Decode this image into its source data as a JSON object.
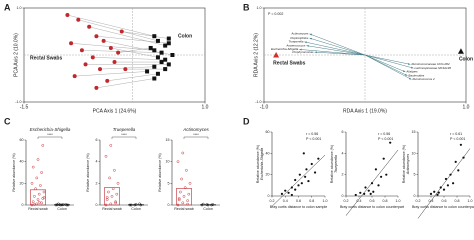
{
  "chart_data": [
    {
      "type": "scatter",
      "panel_label": "A",
      "xlabel": "PCA Axis 1 (24.6%)",
      "ylabel": "PCA Axis 2 (10.0%)",
      "xlim": [
        -1.5,
        1.0
      ],
      "ylim": [
        -1.0,
        1.0
      ],
      "xticks": [
        {
          "value": -1.5,
          "label": "-1.5"
        },
        {
          "value": 1.0,
          "label": "1.0"
        }
      ],
      "yticks": [
        {
          "value": -1.0,
          "label": "-1.0"
        },
        {
          "value": 1.0,
          "label": "1.0"
        }
      ],
      "frame": true,
      "zero_lines": true,
      "paired": true,
      "annotations": [
        {
          "text": "Rectal Swabs",
          "color": "#d42b2b"
        },
        {
          "text": "Colon",
          "color": "#111111"
        }
      ],
      "series": [
        {
          "name": "Rectal Swabs",
          "color": "#c0282d",
          "marker": "circle",
          "x": [
            -0.9,
            -0.75,
            -0.6,
            -0.5,
            -0.85,
            -0.7,
            -0.4,
            -0.3,
            -0.55,
            -0.2,
            -0.65,
            -0.45,
            -0.25,
            -0.8,
            -0.35,
            -0.1,
            -0.5,
            -0.15
          ],
          "y": [
            0.85,
            0.75,
            0.6,
            0.4,
            0.25,
            0.1,
            0.3,
            0.15,
            -0.05,
            0.05,
            -0.2,
            -0.3,
            -0.15,
            -0.45,
            -0.55,
            -0.3,
            -0.7,
            0.5
          ]
        },
        {
          "name": "Colon",
          "color": "#111111",
          "marker": "square",
          "x": [
            0.3,
            0.35,
            0.45,
            0.5,
            0.3,
            0.4,
            0.55,
            0.35,
            0.45,
            0.25,
            0.5,
            0.3,
            0.4,
            0.2,
            0.35,
            0.45,
            0.3,
            0.5
          ],
          "y": [
            0.4,
            0.3,
            0.2,
            0.25,
            0.1,
            0.05,
            0.0,
            -0.05,
            -0.1,
            0.15,
            -0.2,
            -0.25,
            -0.15,
            -0.35,
            -0.4,
            -0.3,
            -0.5,
            0.35
          ]
        }
      ]
    },
    {
      "type": "biplot",
      "panel_label": "B",
      "xlabel": "RDA Axis 1 (19.0%)",
      "ylabel": "RDA Axis 2 (12.2%)",
      "xlim": [
        -1.0,
        1.0
      ],
      "ylim": [
        -1.0,
        1.0
      ],
      "xticks": [
        {
          "value": -1.0,
          "label": "-1.0"
        },
        {
          "value": 1.0,
          "label": "1.0"
        }
      ],
      "yticks": [
        {
          "value": -1.0,
          "label": "-1.0"
        },
        {
          "value": 1.0,
          "label": "1.0"
        }
      ],
      "frame": true,
      "zero_lines": true,
      "annotations": [
        {
          "text": "P = 0.002",
          "color": "#111111"
        }
      ],
      "groups": [
        {
          "name": "Rectal Swabs",
          "color": "#d42b2b",
          "x": -0.88,
          "y": 0.0
        },
        {
          "name": "Colon",
          "color": "#111111",
          "x": 0.95,
          "y": 0.08
        }
      ],
      "vectors": [
        {
          "name": "Actinomyces",
          "x": -0.55,
          "y": 0.45
        },
        {
          "name": "Peptoniphilus",
          "x": -0.55,
          "y": 0.36
        },
        {
          "name": "Trueperella",
          "x": -0.6,
          "y": 0.28
        },
        {
          "name": "Anaerococcus",
          "x": -0.58,
          "y": 0.2
        },
        {
          "name": "Escherichia-Shigella",
          "x": -0.65,
          "y": 0.12
        },
        {
          "name": "Porphyromonas",
          "x": -0.5,
          "y": 0.06
        },
        {
          "name": "Ruminococcaceae UCG-002",
          "x": 0.45,
          "y": -0.2
        },
        {
          "name": "Lachnospiraceae NK4A136",
          "x": 0.48,
          "y": -0.28
        },
        {
          "name": "Alistipes",
          "x": 0.4,
          "y": -0.36
        },
        {
          "name": "Bacteroides",
          "x": 0.42,
          "y": -0.44
        },
        {
          "name": "Ruminococcus 2",
          "x": 0.46,
          "y": -0.52
        }
      ]
    },
    {
      "type": "dot_bar",
      "panel_label": "C",
      "title": "Escherichia-Shigella",
      "ylabel": "Relative abundance (%)",
      "categories": [
        "Rectal swab",
        "Colon"
      ],
      "colors": [
        "#c0282d",
        "#111111"
      ],
      "significance": "****",
      "ylim": [
        0,
        60
      ],
      "yticks": [
        0,
        20,
        40,
        60
      ],
      "values": [
        14,
        0.3
      ],
      "points": [
        [
          0,
          1,
          2,
          3,
          5,
          6,
          8,
          10,
          12,
          15,
          18,
          20,
          25,
          30,
          35,
          42,
          55,
          0.5,
          2.5,
          7
        ],
        [
          0,
          0,
          0.5,
          0.2,
          0.1,
          0,
          1,
          0.3,
          0,
          0.2
        ]
      ]
    },
    {
      "type": "dot_bar",
      "title": "Trueperella",
      "ylabel": "Relative abundance (%)",
      "categories": [
        "Rectal swab",
        "Colon"
      ],
      "colors": [
        "#c0282d",
        "#111111"
      ],
      "significance": "****",
      "ylim": [
        0,
        6
      ],
      "yticks": [
        0,
        2,
        4,
        6
      ],
      "values": [
        1.6,
        0.03
      ],
      "points": [
        [
          0,
          0.1,
          0.2,
          0.5,
          0.8,
          1,
          1.2,
          1.5,
          2,
          2.5,
          3.2,
          4.5,
          5.5,
          0.3,
          0.7
        ],
        [
          0,
          0,
          0.1,
          0,
          0.05,
          0
        ]
      ]
    },
    {
      "type": "dot_bar",
      "title": "Actinomyces",
      "ylabel": "Relative abundance (%)",
      "categories": [
        "Rectal swab",
        "Colon"
      ],
      "colors": [
        "#c0282d",
        "#111111"
      ],
      "significance": "****",
      "ylim": [
        0,
        15
      ],
      "yticks": [
        0,
        5,
        10,
        15
      ],
      "values": [
        3.8,
        0.07
      ],
      "points": [
        [
          0,
          0.5,
          1,
          1.5,
          2,
          2.5,
          3,
          4,
          5,
          6,
          8,
          10,
          12,
          0.2,
          1.2
        ],
        [
          0,
          0.1,
          0,
          0.2,
          0,
          0.1
        ]
      ]
    },
    {
      "type": "scatter",
      "panel_label": "D",
      "xlabel": "Bray curtis distance to colon sample",
      "ylabel_lines": [
        "Relative abundance (%)",
        "Escherichia-Shigella"
      ],
      "xlim": [
        0.2,
        1.0
      ],
      "ylim": [
        0,
        60
      ],
      "xticks": [
        0.2,
        0.4,
        0.6,
        0.8,
        {
          "value": 1.0,
          "label": "1.0"
        }
      ],
      "yticks": [
        0,
        20,
        40,
        60
      ],
      "trendline": true,
      "annotations": [
        {
          "text": "r = 0.56",
          "color": "#111111"
        },
        {
          "text": "P < 0.001",
          "color": "#111111"
        }
      ],
      "series": [
        {
          "name": null,
          "color": "#111111",
          "marker": "dot",
          "x": [
            0.35,
            0.4,
            0.45,
            0.5,
            0.55,
            0.55,
            0.6,
            0.62,
            0.65,
            0.7,
            0.72,
            0.75,
            0.8,
            0.85,
            0.9,
            0.5,
            0.68
          ],
          "y": [
            2,
            5,
            3,
            8,
            6,
            15,
            10,
            20,
            12,
            18,
            25,
            14,
            30,
            22,
            35,
            1,
            40
          ]
        }
      ]
    },
    {
      "type": "scatter",
      "xlabel": "Bray curtis distance to colon counterpart",
      "ylabel_lines": [
        "Relative abundance (%)",
        "Trueperella"
      ],
      "xlim": [
        0.2,
        1.0
      ],
      "ylim": [
        0,
        6
      ],
      "xticks": [
        0.2,
        0.4,
        0.6,
        0.8,
        {
          "value": 1.0,
          "label": "1.0"
        }
      ],
      "yticks": [
        0,
        2,
        4,
        6
      ],
      "trendline": true,
      "annotations": [
        {
          "text": "r = 0.56",
          "color": "#111111"
        },
        {
          "text": "P < 0.001",
          "color": "#111111"
        }
      ],
      "series": [
        {
          "name": null,
          "color": "#111111",
          "marker": "dot",
          "x": [
            0.35,
            0.42,
            0.48,
            0.5,
            0.55,
            0.6,
            0.62,
            0.66,
            0.7,
            0.74,
            0.78,
            0.82,
            0.88,
            0.58
          ],
          "y": [
            0.1,
            0.3,
            0.2,
            0.8,
            0.5,
            1.2,
            0.4,
            2.5,
            1.0,
            1.8,
            3.5,
            2.0,
            5.0,
            0.2
          ]
        }
      ]
    },
    {
      "type": "scatter",
      "xlabel": "Bray curtis distance to colon counterpart",
      "ylabel_lines": [
        "Relative abundance (%)",
        "Actinomyces"
      ],
      "xlim": [
        0.2,
        1.0
      ],
      "ylim": [
        0,
        15
      ],
      "xticks": [
        0.2,
        0.4,
        0.6,
        0.8,
        {
          "value": 1.0,
          "label": "1.0"
        }
      ],
      "yticks": [
        0,
        5,
        10,
        15
      ],
      "trendline": true,
      "annotations": [
        {
          "text": "r = 0.61",
          "color": "#111111"
        },
        {
          "text": "P < 0.001",
          "color": "#111111"
        }
      ],
      "series": [
        {
          "name": null,
          "color": "#111111",
          "marker": "dot",
          "x": [
            0.4,
            0.45,
            0.5,
            0.55,
            0.6,
            0.63,
            0.66,
            0.7,
            0.74,
            0.78,
            0.82,
            0.86,
            0.9,
            0.52
          ],
          "y": [
            0.5,
            1,
            0.3,
            2,
            1.5,
            4,
            2.5,
            5,
            3,
            8,
            6,
            12,
            9,
            0.8
          ]
        }
      ]
    }
  ]
}
